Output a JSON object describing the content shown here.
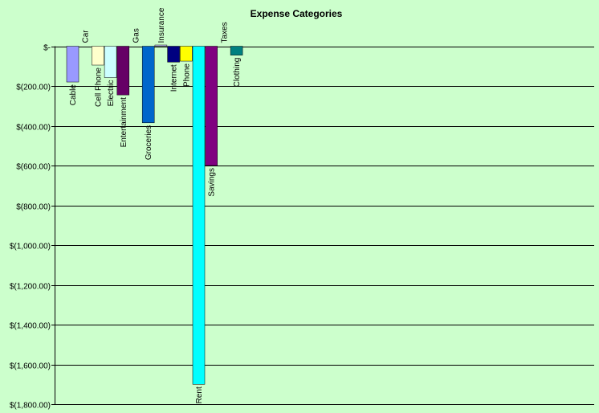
{
  "chart_data": {
    "type": "bar",
    "title": "Expense Categories",
    "xlabel": "",
    "ylabel": "",
    "ylim": [
      -1800,
      0
    ],
    "grid": true,
    "legend": "none",
    "ticks": [
      {
        "value": 0,
        "label": "$-"
      },
      {
        "value": -200,
        "label": "$(200.00)"
      },
      {
        "value": -400,
        "label": "$(400.00)"
      },
      {
        "value": -600,
        "label": "$(600.00)"
      },
      {
        "value": -800,
        "label": "$(800.00)"
      },
      {
        "value": -1000,
        "label": "$(1,000.00)"
      },
      {
        "value": -1200,
        "label": "$(1,200.00)"
      },
      {
        "value": -1400,
        "label": "$(1,400.00)"
      },
      {
        "value": -1600,
        "label": "$(1,600.00)"
      },
      {
        "value": -1800,
        "label": "$(1,800.00)"
      }
    ],
    "categories": [
      "Cable",
      "Car",
      "Cell Phone",
      "Electric",
      "Entertainment",
      "Gas",
      "Groceries",
      "Insurance",
      "Internet",
      "Phone",
      "Rent",
      "Savings",
      "Taxes",
      "Clothing"
    ],
    "values": [
      -180,
      0,
      -95,
      -158,
      -245,
      0,
      -385,
      6,
      -80,
      -75,
      -1700,
      -600,
      0,
      -45
    ],
    "colors": [
      "#9999ff",
      "#ffff99",
      "#ffffcc",
      "#ccffff",
      "#660066",
      "#ff8080",
      "#0066cc",
      "#ccccff",
      "#000080",
      "#ffff00",
      "#00ffff",
      "#800080",
      "#800000",
      "#008080"
    ]
  }
}
